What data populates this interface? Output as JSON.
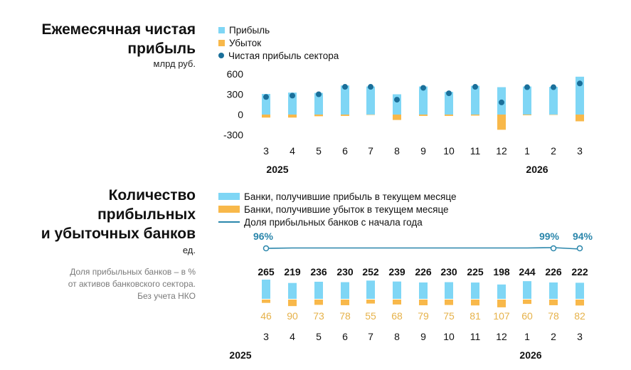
{
  "colors": {
    "profit": "#7fd6f5",
    "loss": "#f8b84a",
    "net": "#1a6f9a",
    "share_line": "#2a86ab",
    "loss_text": "#e6b24a"
  },
  "top": {
    "title_line1": "Ежемесячная чистая",
    "title_line2": "прибыль",
    "unit": "млрд руб.",
    "legend": [
      "Прибыль",
      "Убыток",
      "Чистая прибыль сектора"
    ]
  },
  "bottom": {
    "title_line1": "Количество",
    "title_line2": "прибыльных",
    "title_line3": "и убыточных банков",
    "unit": "ед.",
    "note_line1": "Доля прибыльных банков – в %",
    "note_line2": "от активов банковского сектора.",
    "note_line3": "Без учета НКО",
    "legend": [
      "Банки, получившие прибыль в текущем месяце",
      "Банки, получившие убыток в текущем месяце",
      "Доля прибыльных банков с начала года"
    ]
  },
  "chart_data": [
    {
      "type": "bar",
      "categories": [
        "3",
        "4",
        "5",
        "6",
        "7",
        "8",
        "9",
        "10",
        "11",
        "12",
        "1",
        "2",
        "3"
      ],
      "years": [
        "2025",
        "2026"
      ],
      "series": [
        {
          "name": "Прибыль",
          "values": [
            305,
            325,
            320,
            430,
            415,
            300,
            415,
            335,
            425,
            405,
            415,
            410,
            560
          ]
        },
        {
          "name": "Убыток",
          "values": [
            -45,
            -45,
            -25,
            -20,
            -5,
            -80,
            -20,
            -20,
            -15,
            -225,
            -10,
            -5,
            -100
          ]
        },
        {
          "name": "Чистая прибыль сектора",
          "values": [
            260,
            280,
            300,
            410,
            410,
            220,
            395,
            315,
            410,
            180,
            405,
            405,
            460
          ]
        }
      ],
      "yticks": [
        "600",
        "300",
        "0",
        "-300"
      ],
      "ylim": [
        -300,
        600
      ]
    },
    {
      "type": "bar",
      "categories": [
        "3",
        "4",
        "5",
        "6",
        "7",
        "8",
        "9",
        "10",
        "11",
        "12",
        "1",
        "2",
        "3"
      ],
      "years": [
        "2025",
        "2026"
      ],
      "series": [
        {
          "name": "Банки, получившие прибыль в текущем месяце",
          "values": [
            265,
            219,
            236,
            230,
            252,
            239,
            226,
            230,
            225,
            198,
            244,
            226,
            222
          ]
        },
        {
          "name": "Банки, получившие убыток в текущем месяце",
          "values": [
            46,
            90,
            73,
            78,
            55,
            68,
            79,
            75,
            81,
            107,
            60,
            78,
            82
          ]
        },
        {
          "name": "Доля прибыльных банков с начала года",
          "values": [
            96,
            null,
            null,
            null,
            null,
            null,
            null,
            null,
            null,
            null,
            null,
            99,
            94
          ]
        }
      ],
      "share_labels": {
        "first": "96%",
        "second_last": "99%",
        "last": "94%"
      }
    }
  ]
}
